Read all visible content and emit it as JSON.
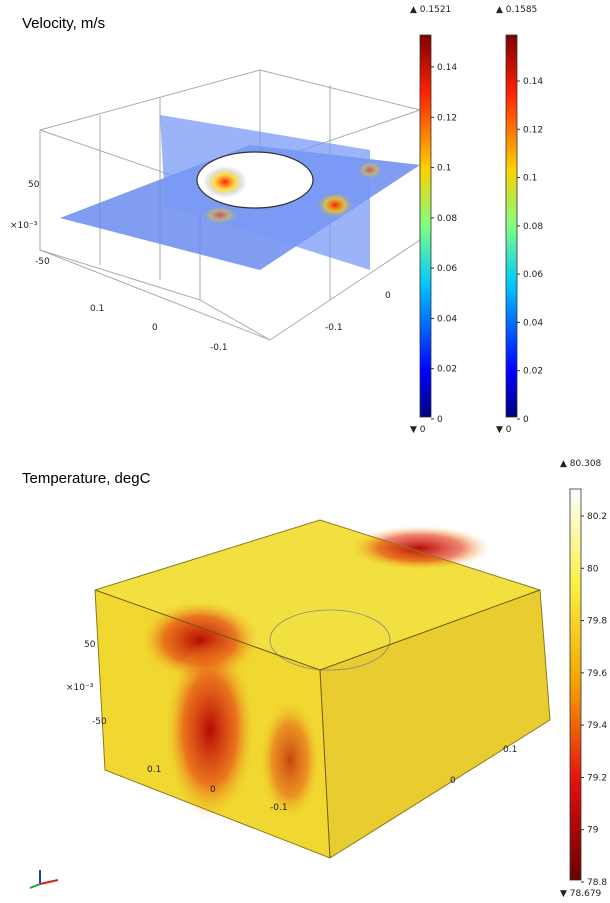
{
  "panels": [
    {
      "title": "Velocity, m/s",
      "axis_labels": [
        "50",
        "×10⁻³",
        "-50",
        "0.1",
        "0",
        "-0.1",
        "0",
        "-0.1"
      ],
      "colorbars": [
        {
          "max": "▲ 0.1521",
          "min": "▼ 0",
          "ticks": [
            "0.14",
            "0.12",
            "0.1",
            "0.08",
            "0.06",
            "0.04",
            "0.02",
            "0"
          ]
        },
        {
          "max": "▲ 0.1585",
          "min": "▼ 0",
          "ticks": [
            "0.14",
            "0.12",
            "0.1",
            "0.08",
            "0.06",
            "0.04",
            "0.02",
            "0"
          ]
        }
      ]
    },
    {
      "title": "Temperature, degC",
      "axis_labels": [
        "50",
        "×10⁻³",
        "-50",
        "0.1",
        "0",
        "-0.1",
        "0.1",
        "0"
      ],
      "colorbars": [
        {
          "max": "▲ 80.308",
          "min": "▼ 78.679",
          "ticks": [
            "80.2",
            "80",
            "79.8",
            "79.6",
            "79.4",
            "79.2",
            "79",
            "78.8"
          ]
        }
      ]
    }
  ]
}
